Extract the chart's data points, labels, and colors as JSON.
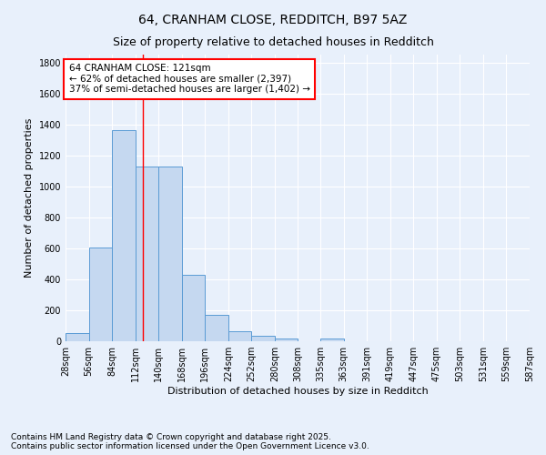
{
  "title1": "64, CRANHAM CLOSE, REDDITCH, B97 5AZ",
  "title2": "Size of property relative to detached houses in Redditch",
  "xlabel": "Distribution of detached houses by size in Redditch",
  "ylabel": "Number of detached properties",
  "bins": [
    28,
    56,
    84,
    112,
    140,
    168,
    196,
    224,
    252,
    280,
    308,
    335,
    363,
    391,
    419,
    447,
    475,
    503,
    531,
    559,
    587
  ],
  "bin_labels": [
    "28sqm",
    "56sqm",
    "84sqm",
    "112sqm",
    "140sqm",
    "168sqm",
    "196sqm",
    "224sqm",
    "252sqm",
    "280sqm",
    "308sqm",
    "335sqm",
    "363sqm",
    "391sqm",
    "419sqm",
    "447sqm",
    "475sqm",
    "503sqm",
    "531sqm",
    "559sqm",
    "587sqm"
  ],
  "values": [
    55,
    605,
    1360,
    1130,
    1130,
    430,
    170,
    65,
    35,
    15,
    0,
    15,
    0,
    0,
    0,
    0,
    0,
    0,
    0,
    0
  ],
  "bar_color": "#c5d8f0",
  "bar_edge_color": "#5a9bd4",
  "vline_x": 121,
  "vline_color": "red",
  "annotation_text": "64 CRANHAM CLOSE: 121sqm\n← 62% of detached houses are smaller (2,397)\n37% of semi-detached houses are larger (1,402) →",
  "annotation_box_color": "white",
  "annotation_box_edge_color": "red",
  "ylim": [
    0,
    1850
  ],
  "yticks": [
    0,
    200,
    400,
    600,
    800,
    1000,
    1200,
    1400,
    1600,
    1800
  ],
  "bg_color": "#e8f0fb",
  "plot_bg_color": "#e8f0fb",
  "footer_text": "Contains HM Land Registry data © Crown copyright and database right 2025.\nContains public sector information licensed under the Open Government Licence v3.0.",
  "title_fontsize": 10,
  "subtitle_fontsize": 9,
  "axis_label_fontsize": 8,
  "tick_fontsize": 7,
  "annotation_fontsize": 7.5,
  "footer_fontsize": 6.5
}
